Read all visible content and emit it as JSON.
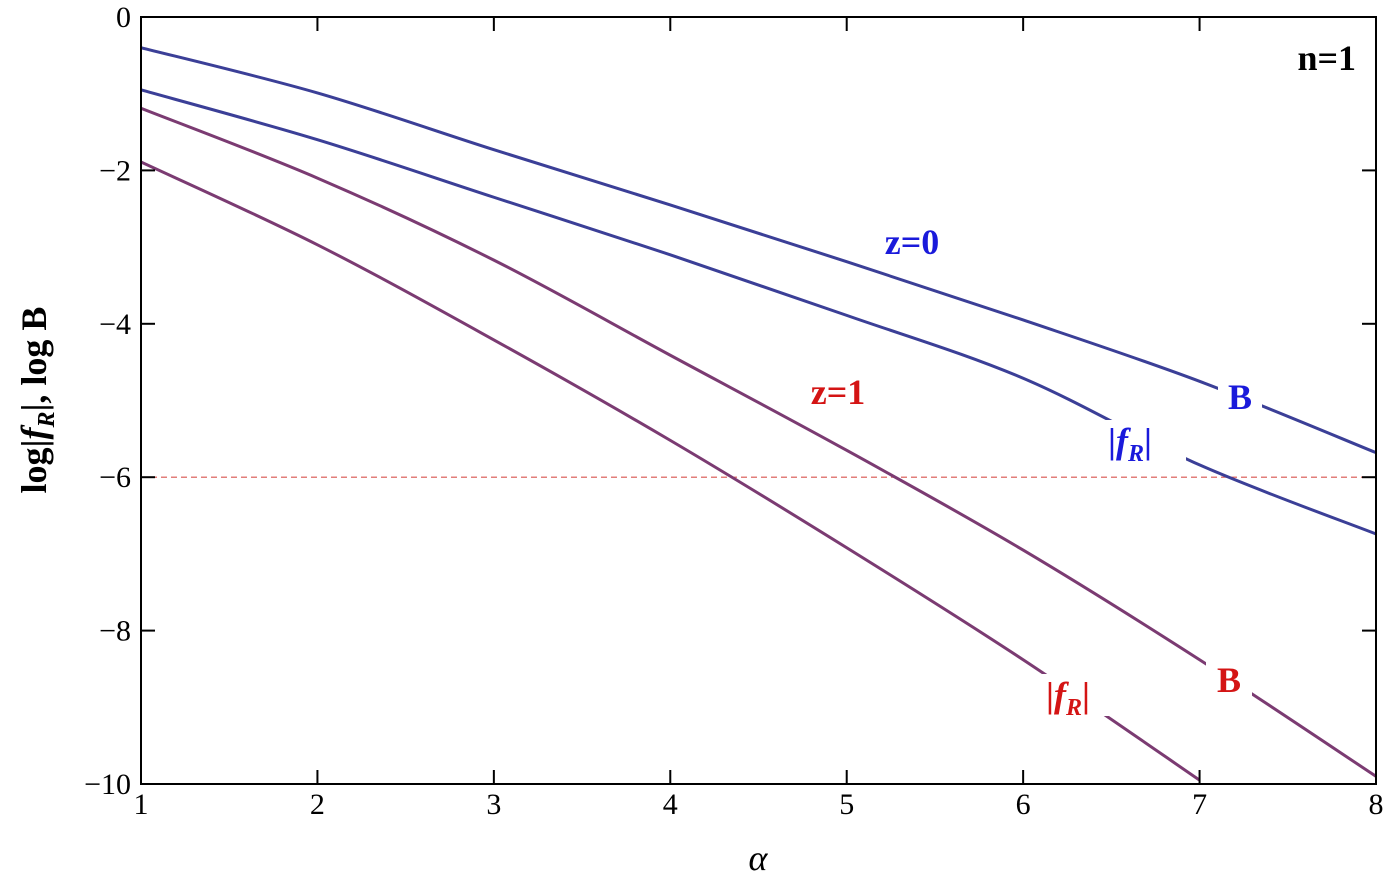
{
  "chart_data": {
    "type": "line",
    "x_label": "α",
    "y_label": [
      "log|",
      "f",
      "R",
      "|, log B"
    ],
    "x": [
      1,
      2,
      3,
      4,
      5,
      6,
      7,
      8
    ],
    "series": [
      {
        "color": "#3b3f97",
        "values": [
          -0.4,
          -0.99,
          -1.73,
          -2.45,
          -3.19,
          -3.95,
          -4.75,
          -5.68
        ]
      },
      {
        "color": "#3b3f97",
        "values": [
          -0.95,
          -1.6,
          -2.35,
          -3.1,
          -3.89,
          -4.71,
          -5.84,
          -6.74
        ]
      },
      {
        "color": "#7b3b72",
        "values": [
          -1.19,
          -2.1,
          -3.17,
          -4.41,
          -5.65,
          -6.95,
          -8.38,
          -9.9
        ]
      },
      {
        "color": "#7b3b72",
        "values": [
          -1.89,
          -2.97,
          -4.21,
          -5.52,
          -6.92,
          -8.38,
          -9.95,
          null
        ]
      }
    ],
    "hline": {
      "value": -6,
      "color": "#d9534f"
    },
    "annotations": [
      {
        "text": "n=1",
        "color": "#000000"
      },
      {
        "text": "z=0",
        "color": "#1a1adb"
      },
      {
        "text": "B",
        "color": "#1a1adb"
      },
      {
        "parts": [
          "|",
          "f",
          "R",
          "|"
        ],
        "color": "#1a1adb"
      },
      {
        "text": "z=1",
        "color": "#d41414"
      },
      {
        "text": "B",
        "color": "#d41414"
      },
      {
        "parts": [
          "|",
          "f",
          "R",
          "|"
        ],
        "color": "#d41414"
      }
    ],
    "xlim": [
      1,
      8
    ],
    "ylim": [
      -10,
      0
    ],
    "xticks": [
      1,
      2,
      3,
      4,
      5,
      6,
      7,
      8
    ],
    "yticks": [
      {
        "value": 0,
        "label": "0"
      },
      {
        "value": -2,
        "label": "−2"
      },
      {
        "value": -4,
        "label": "−4"
      },
      {
        "value": -6,
        "label": "−6"
      },
      {
        "value": -8,
        "label": "−8"
      },
      {
        "value": -10,
        "label": "−10"
      }
    ]
  }
}
